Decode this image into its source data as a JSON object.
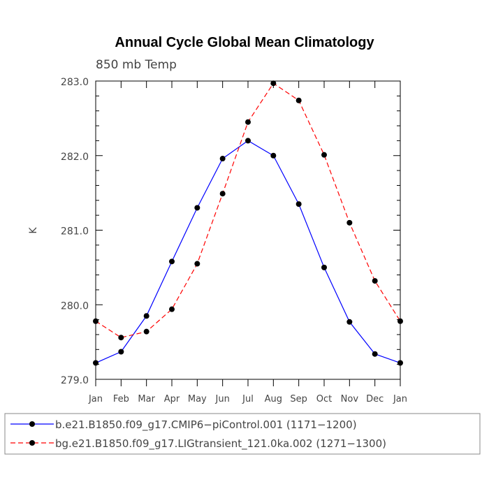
{
  "chart_data": {
    "type": "line",
    "title": "Annual Cycle Global Mean Climatology",
    "subtitle": "850 mb Temp",
    "xlabel": "",
    "ylabel": "K",
    "ylim": [
      279.0,
      283.0
    ],
    "yticks": [
      "279.0",
      "280.0",
      "281.0",
      "282.0",
      "283.0"
    ],
    "categories": [
      "Jan",
      "Feb",
      "Mar",
      "Apr",
      "May",
      "Jun",
      "Jul",
      "Aug",
      "Sep",
      "Oct",
      "Nov",
      "Dec",
      "Jan"
    ],
    "series": [
      {
        "name": "b.e21.B1850.f09_g17.CMIP6−piControl.001 (1171−1200)",
        "color": "#0000ff",
        "dash": "solid",
        "values": [
          279.22,
          279.37,
          279.85,
          280.58,
          281.3,
          281.96,
          282.2,
          282.0,
          281.35,
          280.5,
          279.77,
          279.34,
          279.22
        ]
      },
      {
        "name": "bg.e21.B1850.f09_g17.LIGtransient_121.0ka.002 (1271−1300)",
        "color": "#ff0000",
        "dash": "dashed",
        "values": [
          279.78,
          279.56,
          279.64,
          279.94,
          280.55,
          281.49,
          282.45,
          282.97,
          282.74,
          282.01,
          281.1,
          280.32,
          279.78
        ]
      }
    ],
    "legend_position": "bottom"
  }
}
